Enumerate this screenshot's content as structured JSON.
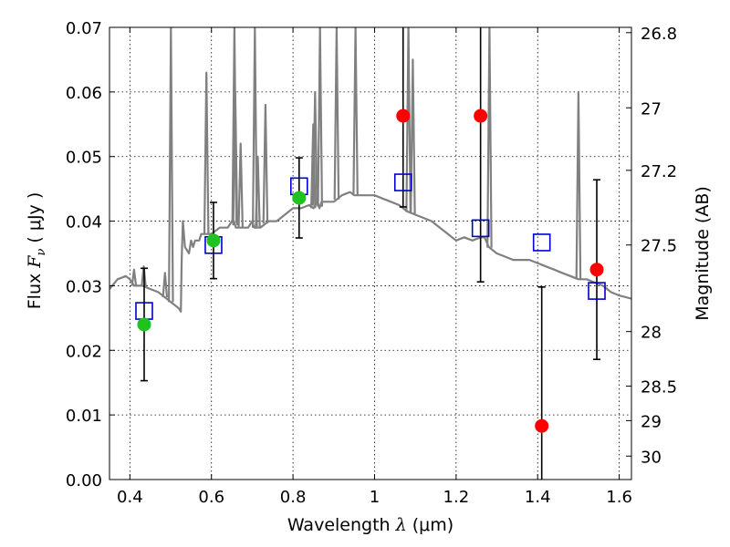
{
  "chart_data": {
    "type": "scatter",
    "title": "",
    "xlabel": {
      "prefix": "Wavelength  ",
      "symbol": "λ",
      "unit": " (μm)"
    },
    "ylabel": {
      "prefix": "Flux  ",
      "symbol": "F",
      "subscript": "ν",
      "unit": "  ( μJy )"
    },
    "y2label": "Magnitude (AB)",
    "xlim": [
      0.35,
      1.63
    ],
    "ylim": [
      0.0,
      0.07
    ],
    "grid": true,
    "x_ticks": [
      0.4,
      0.6,
      0.8,
      1.0,
      1.2,
      1.4,
      1.6
    ],
    "x_tick_labels": [
      "0.4",
      "0.6",
      "0.8",
      "1",
      "1.2",
      "1.4",
      "1.6"
    ],
    "y_ticks": [
      0.0,
      0.01,
      0.02,
      0.03,
      0.04,
      0.05,
      0.06,
      0.07
    ],
    "y_tick_labels": [
      "0.00",
      "0.01",
      "0.02",
      "0.03",
      "0.04",
      "0.05",
      "0.06",
      "0.07"
    ],
    "y2_tick_labels": [
      "26.8",
      "27",
      "27.2",
      "27.5",
      "28",
      "28.5",
      "29",
      "30"
    ],
    "colors": {
      "template": "#808080",
      "detected": "#1fc21f",
      "nondetected": "#ff0000",
      "model": "#0000cc",
      "errorbar": "#000000"
    },
    "series": [
      {
        "role": "spectrum",
        "x": [
          0.35,
          0.37,
          0.39,
          0.4,
          0.41,
          0.43,
          0.45,
          0.47,
          0.49,
          0.51,
          0.52,
          0.525,
          0.527,
          0.53,
          0.535,
          0.54,
          0.545,
          0.55,
          0.555,
          0.56,
          0.57,
          0.575,
          0.58,
          0.59,
          0.6,
          0.62,
          0.64,
          0.65,
          0.655,
          0.66,
          0.67,
          0.69,
          0.7,
          0.705,
          0.71,
          0.72,
          0.74,
          0.76,
          0.78,
          0.8,
          0.82,
          0.84,
          0.85,
          0.86,
          0.865,
          0.87,
          0.875,
          0.88,
          0.9,
          0.92,
          0.94,
          0.95,
          0.96,
          0.98,
          1.0,
          1.02,
          1.04,
          1.06,
          1.08,
          1.1,
          1.12,
          1.14,
          1.16,
          1.18,
          1.2,
          1.22,
          1.24,
          1.26,
          1.27,
          1.28,
          1.3,
          1.32,
          1.34,
          1.36,
          1.38,
          1.4,
          1.42,
          1.44,
          1.46,
          1.48,
          1.5,
          1.52,
          1.54,
          1.56,
          1.58,
          1.6,
          1.63
        ],
        "y": [
          0.0295,
          0.031,
          0.0315,
          0.031,
          0.03,
          0.03,
          0.0295,
          0.029,
          0.028,
          0.027,
          0.0265,
          0.026,
          0.034,
          0.04,
          0.036,
          0.0355,
          0.035,
          0.037,
          0.036,
          0.037,
          0.037,
          0.038,
          0.038,
          0.038,
          0.038,
          0.039,
          0.039,
          0.04,
          0.04,
          0.039,
          0.039,
          0.039,
          0.04,
          0.039,
          0.039,
          0.039,
          0.04,
          0.04,
          0.041,
          0.042,
          0.042,
          0.0425,
          0.042,
          0.043,
          0.042,
          0.043,
          0.043,
          0.043,
          0.043,
          0.044,
          0.0445,
          0.044,
          0.044,
          0.044,
          0.044,
          0.0435,
          0.043,
          0.0425,
          0.0415,
          0.041,
          0.0405,
          0.04,
          0.039,
          0.038,
          0.037,
          0.0375,
          0.037,
          0.0375,
          0.0375,
          0.036,
          0.035,
          0.0345,
          0.034,
          0.034,
          0.034,
          0.0335,
          0.033,
          0.0325,
          0.032,
          0.0315,
          0.031,
          0.031,
          0.0305,
          0.03,
          0.029,
          0.0285,
          0.028
        ]
      },
      {
        "role": "emission-lines",
        "x": [
          0.4101,
          0.434,
          0.4861,
          0.5007,
          0.5876,
          0.6563,
          0.6583,
          0.6716,
          0.7065,
          0.7136,
          0.7325,
          0.8498,
          0.8542,
          0.8662,
          0.9069,
          0.9532,
          1.083,
          1.0938,
          1.2818,
          1.5
        ],
        "y": [
          0.0325,
          0.033,
          0.032,
          0.07,
          0.063,
          0.07,
          0.06,
          0.052,
          0.07,
          0.05,
          0.058,
          0.055,
          0.06,
          0.07,
          0.07,
          0.07,
          0.07,
          0.065,
          0.07,
          0.06
        ]
      },
      {
        "name": "",
        "role": "model-photometry",
        "x": [
          0.435,
          0.605,
          0.815,
          1.07,
          1.26,
          1.41,
          1.545
        ],
        "y": [
          0.0261,
          0.0363,
          0.0454,
          0.046,
          0.0389,
          0.0367,
          0.0292
        ]
      },
      {
        "name": "",
        "role": "detections",
        "x": [
          0.435,
          0.605,
          0.815
        ],
        "y": [
          0.024,
          0.037,
          0.0436
        ],
        "yerr": [
          0.0087,
          0.0059,
          0.0062
        ]
      },
      {
        "name": "",
        "role": "non-detections",
        "x": [
          1.07,
          1.26,
          1.41,
          1.545
        ],
        "y": [
          0.0563,
          0.0563,
          0.0083,
          0.0325
        ],
        "yerr": [
          0.0141,
          0.0257,
          0.0215,
          0.0139
        ]
      }
    ]
  }
}
